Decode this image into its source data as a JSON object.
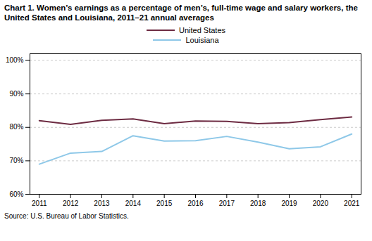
{
  "chart_data": {
    "type": "line",
    "title": "Chart 1. Women’s earnings as a percentage of men’s, full-time wage and salary workers, the United States and Louisiana, 2011–21  annual averages",
    "source": "Source:  U.S. Bureau of Labor Statistics.",
    "x": [
      2011,
      2012,
      2013,
      2014,
      2015,
      2016,
      2017,
      2018,
      2019,
      2020,
      2021
    ],
    "series": [
      {
        "name": "United States",
        "color": "#6d2b42",
        "values": [
          82.0,
          80.9,
          82.1,
          82.5,
          81.1,
          81.9,
          81.8,
          81.1,
          81.4,
          82.3,
          83.1
        ]
      },
      {
        "name": "Louisiana",
        "color": "#8ec8e8",
        "values": [
          69.0,
          72.3,
          72.8,
          77.5,
          75.9,
          76.0,
          77.3,
          75.6,
          73.6,
          74.2,
          78.0
        ]
      }
    ],
    "xlim": [
      2010.7,
      2021.3
    ],
    "xticks": [
      2011,
      2012,
      2013,
      2014,
      2015,
      2016,
      2017,
      2018,
      2019,
      2020,
      2021
    ],
    "ylim": [
      60,
      102
    ],
    "yticks": [
      {
        "value": 60,
        "label": "60%"
      },
      {
        "value": 70,
        "label": "70%"
      },
      {
        "value": 80,
        "label": "80%"
      },
      {
        "value": 90,
        "label": "90%"
      },
      {
        "value": 100,
        "label": "100%"
      }
    ],
    "grid": true,
    "legend": "top"
  }
}
